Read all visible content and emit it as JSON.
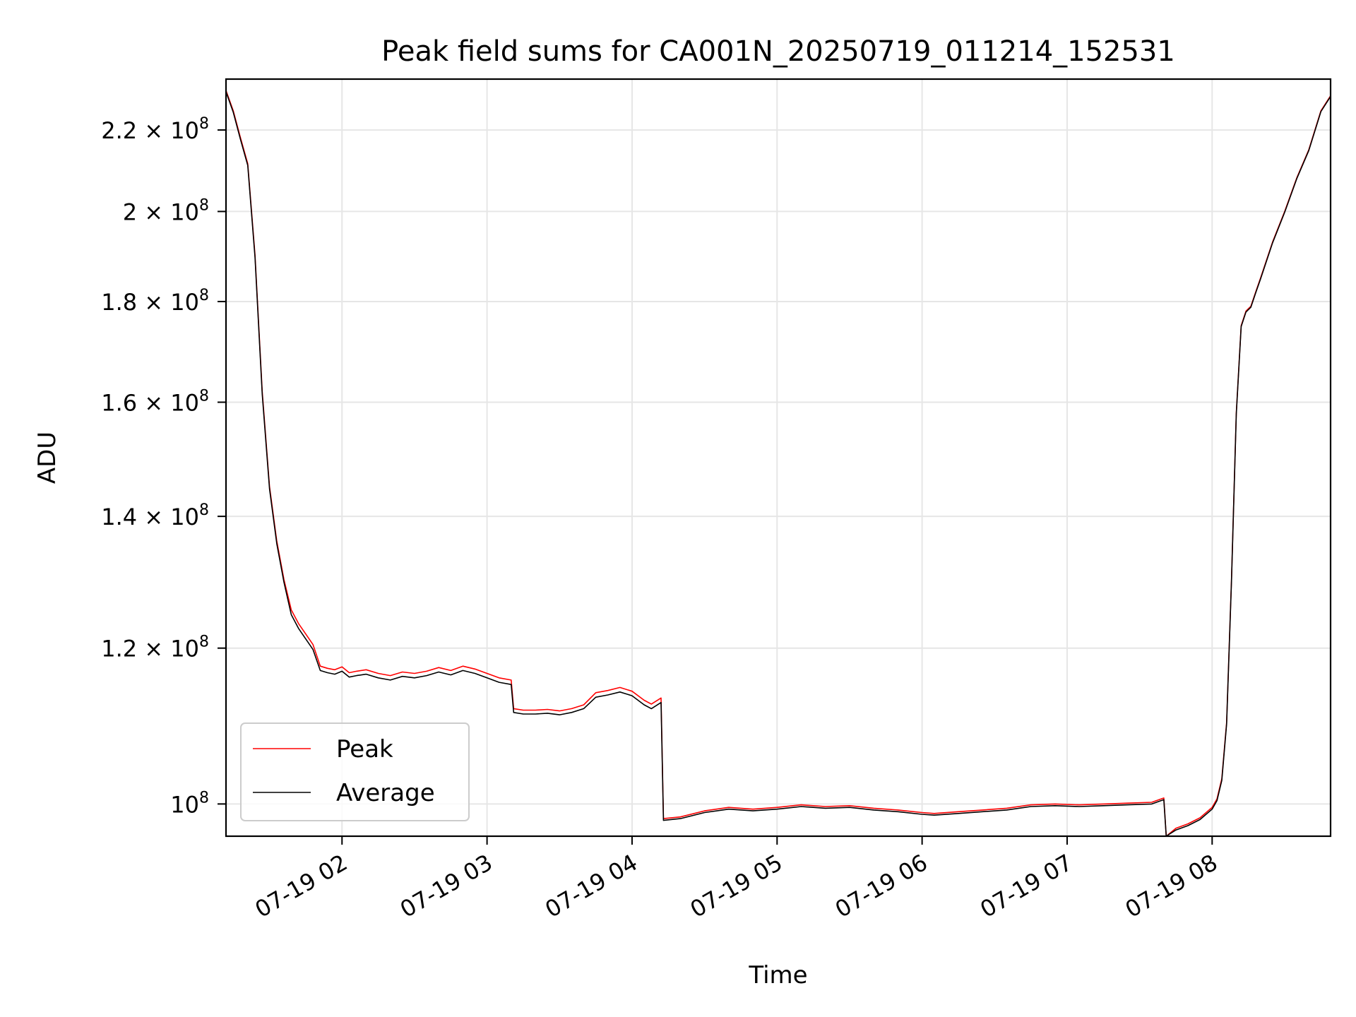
{
  "chart_data": {
    "type": "line",
    "title": "Peak field sums for CA001N_20250719_011214_152531",
    "xlabel": "Time",
    "ylabel": "ADU",
    "yscale": "log",
    "grid": true,
    "legend_position": "lower-left",
    "xlim": [
      "07-19 01:12",
      "07-19 08:49"
    ],
    "ylim": [
      96300000,
      233500000
    ],
    "x_ticks": [
      {
        "x": "07-19 02:00",
        "label": "07-19 02"
      },
      {
        "x": "07-19 03:00",
        "label": "07-19 03"
      },
      {
        "x": "07-19 04:00",
        "label": "07-19 04"
      },
      {
        "x": "07-19 05:00",
        "label": "07-19 05"
      },
      {
        "x": "07-19 06:00",
        "label": "07-19 06"
      },
      {
        "x": "07-19 07:00",
        "label": "07-19 07"
      },
      {
        "x": "07-19 08:00",
        "label": "07-19 08"
      }
    ],
    "y_ticks": [
      {
        "value": 100000000,
        "mantissa": "",
        "exp": "8"
      },
      {
        "value": 120000000,
        "mantissa": "1.2",
        "exp": "8"
      },
      {
        "value": 140000000,
        "mantissa": "1.4",
        "exp": "8"
      },
      {
        "value": 160000000,
        "mantissa": "1.6",
        "exp": "8"
      },
      {
        "value": 180000000,
        "mantissa": "1.8",
        "exp": "8"
      },
      {
        "value": 200000000,
        "mantissa": "2",
        "exp": "8"
      },
      {
        "value": 220000000,
        "mantissa": "2.2",
        "exp": "8"
      }
    ],
    "series": [
      {
        "name": "Peak",
        "color": "#ff0000",
        "x": [
          "07-19 01:12",
          "07-19 01:15",
          "07-19 01:18",
          "07-19 01:21",
          "07-19 01:24",
          "07-19 01:27",
          "07-19 01:30",
          "07-19 01:33",
          "07-19 01:36",
          "07-19 01:39",
          "07-19 01:42",
          "07-19 01:45",
          "07-19 01:48",
          "07-19 01:51",
          "07-19 01:54",
          "07-19 01:57",
          "07-19 02:00",
          "07-19 02:03",
          "07-19 02:06",
          "07-19 02:10",
          "07-19 02:15",
          "07-19 02:20",
          "07-19 02:25",
          "07-19 02:30",
          "07-19 02:35",
          "07-19 02:40",
          "07-19 02:45",
          "07-19 02:50",
          "07-19 02:55",
          "07-19 03:00",
          "07-19 03:05",
          "07-19 03:10",
          "07-19 03:11",
          "07-19 03:15",
          "07-19 03:20",
          "07-19 03:25",
          "07-19 03:30",
          "07-19 03:35",
          "07-19 03:40",
          "07-19 03:45",
          "07-19 03:50",
          "07-19 03:55",
          "07-19 04:00",
          "07-19 04:05",
          "07-19 04:08",
          "07-19 04:12",
          "07-19 04:13",
          "07-19 04:20",
          "07-19 04:30",
          "07-19 04:40",
          "07-19 04:50",
          "07-19 05:00",
          "07-19 05:10",
          "07-19 05:20",
          "07-19 05:30",
          "07-19 05:40",
          "07-19 05:50",
          "07-19 06:00",
          "07-19 06:05",
          "07-19 06:15",
          "07-19 06:25",
          "07-19 06:35",
          "07-19 06:45",
          "07-19 06:55",
          "07-19 07:05",
          "07-19 07:15",
          "07-19 07:25",
          "07-19 07:35",
          "07-19 07:40",
          "07-19 07:41",
          "07-19 07:45",
          "07-19 07:50",
          "07-19 07:55",
          "07-19 08:00",
          "07-19 08:02",
          "07-19 08:04",
          "07-19 08:06",
          "07-19 08:08",
          "07-19 08:10",
          "07-19 08:12",
          "07-19 08:14",
          "07-19 08:16",
          "07-19 08:18",
          "07-19 08:20",
          "07-19 08:25",
          "07-19 08:30",
          "07-19 08:35",
          "07-19 08:40",
          "07-19 08:45",
          "07-19 08:49"
        ],
        "values": [
          230400000,
          225000000,
          218000000,
          211500000,
          190000000,
          162000000,
          145000000,
          136000000,
          130000000,
          125500000,
          123500000,
          122000000,
          120500000,
          117500000,
          117200000,
          117000000,
          117400000,
          116600000,
          116800000,
          117000000,
          116500000,
          116200000,
          116700000,
          116500000,
          116800000,
          117300000,
          116900000,
          117500000,
          117100000,
          116500000,
          115900000,
          115600000,
          111800000,
          111600000,
          111600000,
          111700000,
          111500000,
          111800000,
          112300000,
          113900000,
          114200000,
          114600000,
          114100000,
          112900000,
          112400000,
          113200000,
          98300000,
          98500000,
          99200000,
          99600000,
          99400000,
          99600000,
          99900000,
          99700000,
          99800000,
          99500000,
          99300000,
          99000000,
          98900000,
          99100000,
          99300000,
          99500000,
          99900000,
          100000000,
          99900000,
          100000000,
          100100000,
          100200000,
          100700000,
          96300000,
          97200000,
          97700000,
          98400000,
          99600000,
          100600000,
          103000000,
          110000000,
          130000000,
          158000000,
          175000000,
          178000000,
          179000000,
          182000000,
          185000000,
          193000000,
          200000000,
          208000000,
          215000000,
          225000000,
          229000000
        ]
      },
      {
        "name": "Average",
        "color": "#000000",
        "x": [
          "07-19 01:12",
          "07-19 01:15",
          "07-19 01:18",
          "07-19 01:21",
          "07-19 01:24",
          "07-19 01:27",
          "07-19 01:30",
          "07-19 01:33",
          "07-19 01:36",
          "07-19 01:39",
          "07-19 01:42",
          "07-19 01:45",
          "07-19 01:48",
          "07-19 01:51",
          "07-19 01:54",
          "07-19 01:57",
          "07-19 02:00",
          "07-19 02:03",
          "07-19 02:06",
          "07-19 02:10",
          "07-19 02:15",
          "07-19 02:20",
          "07-19 02:25",
          "07-19 02:30",
          "07-19 02:35",
          "07-19 02:40",
          "07-19 02:45",
          "07-19 02:50",
          "07-19 02:55",
          "07-19 03:00",
          "07-19 03:05",
          "07-19 03:10",
          "07-19 03:11",
          "07-19 03:15",
          "07-19 03:20",
          "07-19 03:25",
          "07-19 03:30",
          "07-19 03:35",
          "07-19 03:40",
          "07-19 03:45",
          "07-19 03:50",
          "07-19 03:55",
          "07-19 04:00",
          "07-19 04:05",
          "07-19 04:08",
          "07-19 04:12",
          "07-19 04:13",
          "07-19 04:20",
          "07-19 04:30",
          "07-19 04:40",
          "07-19 04:50",
          "07-19 05:00",
          "07-19 05:10",
          "07-19 05:20",
          "07-19 05:30",
          "07-19 05:40",
          "07-19 05:50",
          "07-19 06:00",
          "07-19 06:05",
          "07-19 06:15",
          "07-19 06:25",
          "07-19 06:35",
          "07-19 06:45",
          "07-19 06:55",
          "07-19 07:05",
          "07-19 07:15",
          "07-19 07:25",
          "07-19 07:35",
          "07-19 07:40",
          "07-19 07:41",
          "07-19 07:45",
          "07-19 07:50",
          "07-19 07:55",
          "07-19 08:00",
          "07-19 08:02",
          "07-19 08:04",
          "07-19 08:06",
          "07-19 08:08",
          "07-19 08:10",
          "07-19 08:12",
          "07-19 08:14",
          "07-19 08:16",
          "07-19 08:18",
          "07-19 08:20",
          "07-19 08:25",
          "07-19 08:30",
          "07-19 08:35",
          "07-19 08:40",
          "07-19 08:45",
          "07-19 08:49"
        ],
        "values": [
          230100000,
          224600000,
          217600000,
          211100000,
          189500000,
          161500000,
          144600000,
          135600000,
          129600000,
          124800000,
          122800000,
          121300000,
          119800000,
          116900000,
          116600000,
          116400000,
          116800000,
          116000000,
          116200000,
          116400000,
          115900000,
          115600000,
          116100000,
          115900000,
          116200000,
          116700000,
          116300000,
          116900000,
          116500000,
          115900000,
          115300000,
          115000000,
          111300000,
          111100000,
          111100000,
          111200000,
          111000000,
          111300000,
          111800000,
          113300000,
          113600000,
          114000000,
          113500000,
          112300000,
          111800000,
          112600000,
          98100000,
          98300000,
          99000000,
          99400000,
          99200000,
          99400000,
          99700000,
          99500000,
          99600000,
          99300000,
          99100000,
          98800000,
          98700000,
          98900000,
          99100000,
          99300000,
          99700000,
          99800000,
          99700000,
          99800000,
          99900000,
          100000000,
          100500000,
          96300000,
          97000000,
          97500000,
          98200000,
          99400000,
          100400000,
          102800000,
          109800000,
          129800000,
          157800000,
          174800000,
          177800000,
          178800000,
          181800000,
          184800000,
          192800000,
          199800000,
          207800000,
          214800000,
          224800000,
          228800000
        ]
      }
    ]
  }
}
